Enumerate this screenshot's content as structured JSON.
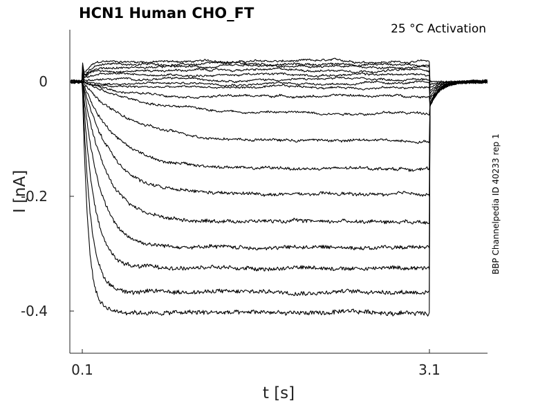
{
  "chart_data": {
    "type": "line",
    "title": "HCN1  Human  CHO_FT",
    "condition_label": "25 °C  Activation",
    "side_label": "BBP Channelpedia ID 40233 rep 1",
    "xlabel": "t [s]",
    "ylabel": "I [nA]",
    "xlim": [
      0.0,
      3.6
    ],
    "ylim": [
      -0.475,
      0.09
    ],
    "x_ticks": [
      {
        "value": 0.1,
        "label": "0.1"
      },
      {
        "value": 3.1,
        "label": "3.1"
      }
    ],
    "y_ticks": [
      {
        "value": 0,
        "label": "0"
      },
      {
        "value": -0.2,
        "label": "-0.2"
      },
      {
        "value": -0.4,
        "label": "-0.4"
      }
    ],
    "pulse_start": 0.1,
    "pulse_end": 3.1,
    "grid": false,
    "legend": "none",
    "series": [
      {
        "steady_state": 0.035,
        "tau": 0.05,
        "peak": 0.04
      },
      {
        "steady_state": 0.03,
        "tau": 0.05,
        "peak": 0.035
      },
      {
        "steady_state": 0.025,
        "tau": 0.05,
        "peak": 0.03
      },
      {
        "steady_state": 0.02,
        "tau": 0.05,
        "peak": 0.025
      },
      {
        "steady_state": 0.012,
        "tau": 0.05,
        "peak": 0.02
      },
      {
        "steady_state": 0.004,
        "tau": 0.05,
        "peak": 0.015
      },
      {
        "steady_state": -0.003,
        "tau": 0.08,
        "peak": 0.01
      },
      {
        "steady_state": -0.01,
        "tau": 0.12,
        "peak": 0.005
      },
      {
        "steady_state": -0.025,
        "tau": 0.3,
        "peak": 0.0
      },
      {
        "steady_state": -0.055,
        "tau": 0.5,
        "peak": 0.0
      },
      {
        "steady_state": -0.103,
        "tau": 0.4,
        "peak": 0.0
      },
      {
        "steady_state": -0.152,
        "tau": 0.3,
        "peak": 0.0
      },
      {
        "steady_state": -0.197,
        "tau": 0.25,
        "peak": 0.0
      },
      {
        "steady_state": -0.243,
        "tau": 0.2,
        "peak": 0.0
      },
      {
        "steady_state": -0.289,
        "tau": 0.15,
        "peak": 0.0
      },
      {
        "steady_state": -0.325,
        "tau": 0.1,
        "peak": 0.0
      },
      {
        "steady_state": -0.366,
        "tau": 0.07,
        "peak": 0.0
      },
      {
        "steady_state": -0.403,
        "tau": 0.05,
        "peak": 0.0
      }
    ],
    "tail_current": -0.045
  }
}
